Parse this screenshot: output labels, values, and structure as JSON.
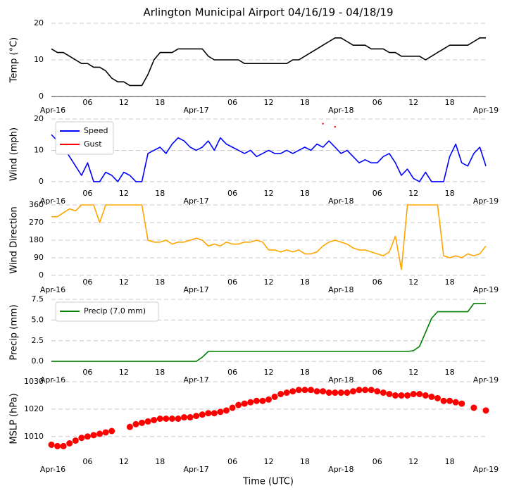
{
  "chart_data": [
    {
      "type": "line",
      "title": "Arlington Municipal Airport 04/16/19 - 04/18/19",
      "ylabel": "Temp (°C)",
      "color": "#000000",
      "x": [
        0,
        1,
        2,
        3,
        4,
        5,
        6,
        7,
        8,
        9,
        10,
        11,
        12,
        13,
        14,
        15,
        16,
        17,
        18,
        19,
        20,
        21,
        22,
        23,
        24,
        25,
        26,
        27,
        28,
        29,
        30,
        31,
        32,
        33,
        34,
        35,
        36,
        37,
        38,
        39,
        40,
        41,
        42,
        43,
        44,
        45,
        46,
        47,
        48,
        49,
        50,
        51,
        52,
        53,
        54,
        55,
        56,
        57,
        58,
        59,
        60,
        61,
        62,
        63,
        64,
        65,
        66,
        67,
        68,
        69,
        70,
        71,
        72
      ],
      "values": [
        13,
        12,
        12,
        11,
        10,
        9,
        9,
        8,
        8,
        7,
        5,
        4,
        4,
        3,
        3,
        3,
        6,
        10,
        12,
        12,
        12,
        13,
        13,
        13,
        13,
        13,
        11,
        10,
        10,
        10,
        10,
        10,
        9,
        9,
        9,
        9,
        9,
        9,
        9,
        9,
        10,
        10,
        11,
        12,
        13,
        14,
        15,
        16,
        16,
        15,
        14,
        14,
        14,
        13,
        13,
        13,
        12,
        12,
        11,
        11,
        11,
        11,
        10,
        11,
        12,
        13,
        14,
        14,
        14,
        14,
        15,
        16,
        16
      ],
      "xlim": [
        0,
        72
      ],
      "xticks": [
        {
          "value": 0,
          "label": "Apr-16"
        },
        {
          "value": 6,
          "label": "06"
        },
        {
          "value": 12,
          "label": "12"
        },
        {
          "value": 18,
          "label": "18"
        },
        {
          "value": 24,
          "label": "Apr-17"
        },
        {
          "value": 30,
          "label": "06"
        },
        {
          "value": 36,
          "label": "12"
        },
        {
          "value": 42,
          "label": "18"
        },
        {
          "value": 48,
          "label": "Apr-18"
        },
        {
          "value": 54,
          "label": "06"
        },
        {
          "value": 60,
          "label": "12"
        },
        {
          "value": 66,
          "label": "18"
        },
        {
          "value": 72,
          "label": "Apr-19"
        }
      ],
      "ylim": [
        0,
        20
      ],
      "yticks": [
        0,
        10,
        20
      ],
      "grid": true
    },
    {
      "type": "line",
      "ylabel": "Wind (mph)",
      "legend": "upper left",
      "x": [
        0,
        1,
        2,
        3,
        4,
        5,
        6,
        7,
        8,
        9,
        10,
        11,
        12,
        13,
        14,
        15,
        16,
        17,
        18,
        19,
        20,
        21,
        22,
        23,
        24,
        25,
        26,
        27,
        28,
        29,
        30,
        31,
        32,
        33,
        34,
        35,
        36,
        37,
        38,
        39,
        40,
        41,
        42,
        43,
        44,
        45,
        46,
        47,
        48,
        49,
        50,
        51,
        52,
        53,
        54,
        55,
        56,
        57,
        58,
        59,
        60,
        61,
        62,
        63,
        64,
        65,
        66,
        67,
        68,
        69,
        70,
        71,
        72
      ],
      "series": [
        {
          "name": "Speed",
          "color": "#0000ff",
          "values": [
            15,
            13,
            11,
            8,
            5,
            2,
            6,
            0,
            0,
            3,
            2,
            0,
            3,
            2,
            0,
            0,
            9,
            10,
            11,
            9,
            12,
            14,
            13,
            11,
            10,
            11,
            13,
            10,
            14,
            12,
            11,
            10,
            9,
            10,
            8,
            9,
            10,
            9,
            9,
            10,
            9,
            10,
            11,
            10,
            12,
            11,
            13,
            11,
            9,
            10,
            8,
            6,
            7,
            6,
            6,
            8,
            9,
            6,
            2,
            4,
            1,
            0,
            3,
            0,
            0,
            0,
            8,
            12,
            6,
            5,
            9,
            11,
            5
          ]
        },
        {
          "name": "Gust",
          "color": "#ff0000",
          "values": [
            null,
            null,
            null,
            null,
            null,
            null,
            null,
            null,
            null,
            null,
            null,
            null,
            null,
            null,
            null,
            null,
            null,
            null,
            null,
            null,
            null,
            null,
            null,
            null,
            null,
            null,
            null,
            null,
            null,
            null,
            null,
            null,
            null,
            null,
            null,
            null,
            null,
            null,
            null,
            null,
            null,
            null,
            null,
            null,
            null,
            18.5,
            null,
            17.5,
            null,
            null,
            null,
            null,
            null,
            null,
            null,
            null,
            null,
            null,
            null,
            null,
            null,
            null,
            null,
            null,
            null,
            null,
            null,
            null,
            null,
            null,
            null,
            null,
            null
          ]
        }
      ],
      "xlim": [
        0,
        72
      ],
      "xticks": [
        {
          "value": 0,
          "label": "Apr-16"
        },
        {
          "value": 6,
          "label": "06"
        },
        {
          "value": 12,
          "label": "12"
        },
        {
          "value": 18,
          "label": "18"
        },
        {
          "value": 24,
          "label": "Apr-17"
        },
        {
          "value": 30,
          "label": "06"
        },
        {
          "value": 36,
          "label": "12"
        },
        {
          "value": 42,
          "label": "18"
        },
        {
          "value": 48,
          "label": "Apr-18"
        },
        {
          "value": 54,
          "label": "06"
        },
        {
          "value": 60,
          "label": "12"
        },
        {
          "value": 66,
          "label": "18"
        },
        {
          "value": 72,
          "label": "Apr-19"
        }
      ],
      "ylim": [
        -2.5,
        20
      ],
      "yticks": [
        0,
        10,
        20
      ],
      "grid": true
    },
    {
      "type": "line",
      "ylabel": "Wind Direction",
      "color": "#ffa500",
      "x": [
        0,
        1,
        2,
        3,
        4,
        5,
        6,
        7,
        8,
        9,
        10,
        11,
        12,
        13,
        14,
        15,
        16,
        17,
        18,
        19,
        20,
        21,
        22,
        23,
        24,
        25,
        26,
        27,
        28,
        29,
        30,
        31,
        32,
        33,
        34,
        35,
        36,
        37,
        38,
        39,
        40,
        41,
        42,
        43,
        44,
        45,
        46,
        47,
        48,
        49,
        50,
        51,
        52,
        53,
        54,
        55,
        56,
        57,
        58,
        59,
        60,
        61,
        62,
        63,
        64,
        65,
        66,
        67,
        68,
        69,
        70,
        71,
        72
      ],
      "values": [
        300,
        300,
        320,
        340,
        330,
        360,
        360,
        360,
        270,
        360,
        360,
        360,
        360,
        360,
        360,
        360,
        180,
        170,
        170,
        180,
        160,
        170,
        170,
        180,
        190,
        180,
        150,
        160,
        150,
        170,
        160,
        160,
        170,
        170,
        180,
        170,
        130,
        130,
        120,
        130,
        120,
        130,
        110,
        110,
        120,
        150,
        170,
        180,
        170,
        160,
        140,
        130,
        130,
        120,
        110,
        100,
        120,
        200,
        30,
        360,
        360,
        360,
        360,
        360,
        360,
        100,
        90,
        100,
        90,
        110,
        100,
        110,
        150
      ],
      "xlim": [
        0,
        72
      ],
      "xticks": [
        {
          "value": 0,
          "label": "Apr-16"
        },
        {
          "value": 6,
          "label": "06"
        },
        {
          "value": 12,
          "label": "12"
        },
        {
          "value": 18,
          "label": "18"
        },
        {
          "value": 24,
          "label": "Apr-17"
        },
        {
          "value": 30,
          "label": "06"
        },
        {
          "value": 36,
          "label": "12"
        },
        {
          "value": 42,
          "label": "18"
        },
        {
          "value": 48,
          "label": "Apr-18"
        },
        {
          "value": 54,
          "label": "06"
        },
        {
          "value": 60,
          "label": "12"
        },
        {
          "value": 66,
          "label": "18"
        },
        {
          "value": 72,
          "label": "Apr-19"
        }
      ],
      "ylim": [
        0,
        360
      ],
      "yticks": [
        0,
        90,
        180,
        270,
        360
      ],
      "grid": true
    },
    {
      "type": "line",
      "ylabel": "Precip (mm)",
      "legend": "upper left",
      "x": [
        0,
        1,
        2,
        3,
        4,
        5,
        6,
        7,
        8,
        9,
        10,
        11,
        12,
        13,
        14,
        15,
        16,
        17,
        18,
        19,
        20,
        21,
        22,
        23,
        24,
        25,
        26,
        27,
        28,
        29,
        30,
        31,
        32,
        33,
        34,
        35,
        36,
        37,
        38,
        39,
        40,
        41,
        42,
        43,
        44,
        45,
        46,
        47,
        48,
        49,
        50,
        51,
        52,
        53,
        54,
        55,
        56,
        57,
        58,
        59,
        60,
        61,
        62,
        63,
        64,
        65,
        66,
        67,
        68,
        69,
        70,
        71,
        72
      ],
      "series": [
        {
          "name": "Precip (7.0 mm)",
          "color": "#008000",
          "values": [
            0,
            0,
            0,
            0,
            0,
            0,
            0,
            0,
            0,
            0,
            0,
            0,
            0,
            0,
            0,
            0,
            0,
            0,
            0,
            0,
            0,
            0,
            0,
            0,
            0,
            0.5,
            1.2,
            1.2,
            1.2,
            1.2,
            1.2,
            1.2,
            1.2,
            1.2,
            1.2,
            1.2,
            1.2,
            1.2,
            1.2,
            1.2,
            1.2,
            1.2,
            1.2,
            1.2,
            1.2,
            1.2,
            1.2,
            1.2,
            1.2,
            1.2,
            1.2,
            1.2,
            1.2,
            1.2,
            1.2,
            1.2,
            1.2,
            1.2,
            1.2,
            1.2,
            1.3,
            1.8,
            3.5,
            5.2,
            6,
            6,
            6,
            6,
            6,
            6,
            7,
            7,
            7
          ]
        }
      ],
      "xlim": [
        0,
        72
      ],
      "xticks": [
        {
          "value": 0,
          "label": "Apr-16"
        },
        {
          "value": 6,
          "label": "06"
        },
        {
          "value": 12,
          "label": "12"
        },
        {
          "value": 18,
          "label": "18"
        },
        {
          "value": 24,
          "label": "Apr-17"
        },
        {
          "value": 30,
          "label": "06"
        },
        {
          "value": 36,
          "label": "12"
        },
        {
          "value": 42,
          "label": "18"
        },
        {
          "value": 48,
          "label": "Apr-18"
        },
        {
          "value": 54,
          "label": "06"
        },
        {
          "value": 60,
          "label": "12"
        },
        {
          "value": 66,
          "label": "18"
        },
        {
          "value": 72,
          "label": "Apr-19"
        }
      ],
      "ylim": [
        -0.5,
        7.5
      ],
      "yticks": [
        {
          "value": 0,
          "label": "0.0"
        },
        2.5,
        {
          "value": 5,
          "label": "5.0"
        },
        7.5
      ],
      "grid": true
    },
    {
      "type": "scatter",
      "ylabel": "MSLP (hPa)",
      "xlabel": "Time (UTC)",
      "color": "#ff0000",
      "x": [
        0,
        1,
        2,
        3,
        4,
        5,
        6,
        7,
        8,
        9,
        10,
        11,
        12,
        13,
        14,
        15,
        16,
        17,
        18,
        19,
        20,
        21,
        22,
        23,
        24,
        25,
        26,
        27,
        28,
        29,
        30,
        31,
        32,
        33,
        34,
        35,
        36,
        37,
        38,
        39,
        40,
        41,
        42,
        43,
        44,
        45,
        46,
        47,
        48,
        49,
        50,
        51,
        52,
        53,
        54,
        55,
        56,
        57,
        58,
        59,
        60,
        61,
        62,
        63,
        64,
        65,
        66,
        67,
        68,
        69,
        70,
        71,
        72
      ],
      "values": [
        1007,
        1006.5,
        1006.5,
        1007.5,
        1008.5,
        1009.5,
        1010,
        1010.5,
        1011,
        1011.5,
        1012,
        null,
        null,
        1013.5,
        1014.5,
        1015,
        1015.5,
        1016,
        1016.5,
        1016.5,
        1016.5,
        1016.5,
        1017,
        1017,
        1017.5,
        1018,
        1018.5,
        1018.5,
        1019,
        1019.5,
        1020.5,
        1021.5,
        1022,
        1022.5,
        1023,
        1023,
        1023.5,
        1024.5,
        1025.5,
        1026,
        1026.5,
        1027,
        1027,
        1027,
        1026.5,
        1026.5,
        1026,
        1026,
        1026,
        1026,
        1026.5,
        1027,
        1027,
        1027,
        1026.5,
        1026,
        1025.5,
        1025,
        1025,
        1025,
        1025.5,
        1025.5,
        1025,
        1024.5,
        1024,
        1023,
        1023,
        1022.5,
        1022,
        null,
        1020.5,
        null,
        1019.5
      ],
      "xlim": [
        0,
        72
      ],
      "xticks": [
        {
          "value": 0,
          "label": "Apr-16"
        },
        {
          "value": 6,
          "label": "06"
        },
        {
          "value": 12,
          "label": "12"
        },
        {
          "value": 18,
          "label": "18"
        },
        {
          "value": 24,
          "label": "Apr-17"
        },
        {
          "value": 30,
          "label": "06"
        },
        {
          "value": 36,
          "label": "12"
        },
        {
          "value": 42,
          "label": "18"
        },
        {
          "value": 48,
          "label": "Apr-18"
        },
        {
          "value": 54,
          "label": "06"
        },
        {
          "value": 60,
          "label": "12"
        },
        {
          "value": 66,
          "label": "18"
        },
        {
          "value": 72,
          "label": "Apr-19"
        }
      ],
      "ylim": [
        1003,
        1030
      ],
      "yticks": [
        1010,
        1020,
        1030
      ],
      "grid": true
    }
  ]
}
